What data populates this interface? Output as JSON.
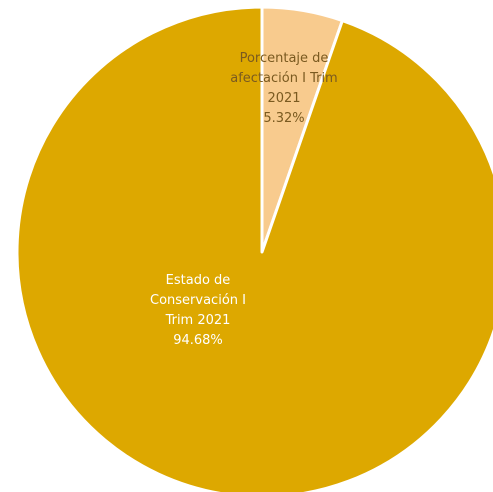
{
  "chart_data": {
    "type": "pie",
    "title": "",
    "legend": "none",
    "slices": [
      {
        "label_lines": [
          "Porcentaje de",
          "afectación I Trim",
          "2021"
        ],
        "value_label": "5.32%",
        "value": 5.32,
        "color": "#F8CB8E",
        "label_color": "#7A5A20"
      },
      {
        "label_lines": [
          "Estado de",
          "Conservación I",
          "Trim 2021"
        ],
        "value_label": "94.68%",
        "value": 94.68,
        "color": "#DDA800",
        "label_color": "#FFFFFF"
      }
    ],
    "border_color": "#FFFFFF"
  }
}
